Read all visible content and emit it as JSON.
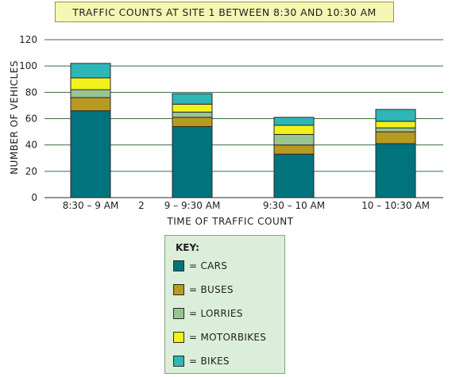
{
  "chart_data": {
    "type": "bar",
    "stacked": true,
    "title": "TRAFFIC COUNTS AT SITE 1 BETWEEN 8:30 AND 10:30 AM",
    "xlabel": "TIME OF TRAFFIC COUNT",
    "ylabel": "NUMBER OF VEHICLES",
    "ylim": [
      0,
      120
    ],
    "yticks": [
      0,
      20,
      40,
      60,
      80,
      100,
      120
    ],
    "categories": [
      "8:30 – 9 AM",
      "9 – 9:30 AM",
      "9:30 – 10 AM",
      "10 – 10:30 AM"
    ],
    "stray_label": "2",
    "grid": true,
    "legend_title": "KEY:",
    "series": [
      {
        "name": "= CARS",
        "color": "#00737c",
        "values": [
          66,
          54,
          33,
          41
        ]
      },
      {
        "name": "= BUSES",
        "color": "#b89a1f",
        "values": [
          10,
          7,
          7,
          9
        ]
      },
      {
        "name": "= LORRIES",
        "color": "#98c592",
        "values": [
          6,
          4,
          8,
          3
        ]
      },
      {
        "name": "= MOTORBIKES",
        "color": "#f2f21a",
        "values": [
          9,
          6,
          7,
          5
        ]
      },
      {
        "name": "= BIKES",
        "color": "#2fb6b6",
        "values": [
          11,
          8,
          6,
          9
        ]
      }
    ]
  }
}
